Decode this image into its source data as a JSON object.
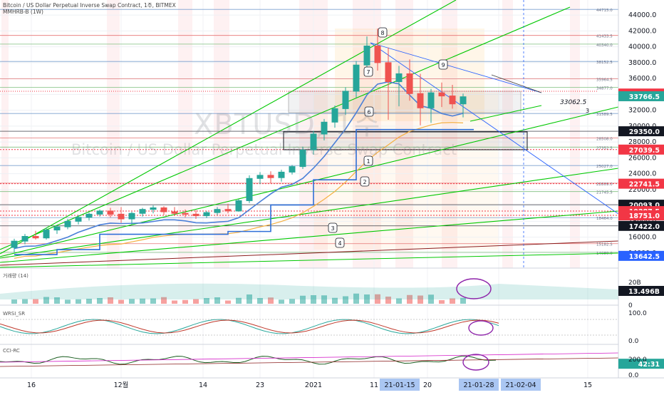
{
  "header": {
    "title": "Bitcoin / US Dollar Perpetual Inverse Swap Contract, 1주, BITMEX",
    "sub": "MMHRB-B (1W)"
  },
  "watermark": {
    "symbol": "XBTUSD, 1주",
    "name": "Bitcoin / US Dollar Perpetual Inverse Swap Contract"
  },
  "colors": {
    "up": "#26a69a",
    "down": "#ef5350",
    "accent_blue": "#2962ff",
    "price_red": "#f23645",
    "trend_green": "#00c800",
    "date_badge": "#aac6f2"
  },
  "chart_data": {
    "type": "candlestick",
    "panels": [
      "price",
      "거래량 (14)",
      "WRSI_SR",
      "CCI-RC"
    ],
    "price_axis": {
      "labels": [
        "44000.0",
        "42000.0",
        "40000.0",
        "38000.0",
        "36000.0",
        "34000.0",
        "32000.0",
        "30000.0",
        "28000.0",
        "26000.0",
        "24000.0",
        "22000.0",
        "20000.0",
        "18000.0",
        "16000.0",
        "14000.0"
      ],
      "ylim": [
        13000,
        45000
      ]
    },
    "price_tags": [
      {
        "text": "34107.5",
        "color": "#f23645"
      },
      {
        "text": "33766.5",
        "color": "#26a69a"
      },
      {
        "text": "42:31",
        "color": "#26a69a"
      },
      {
        "text": "29350.0",
        "color": "#131722"
      },
      {
        "text": "27039.5",
        "color": "#f23645"
      },
      {
        "text": "22741.5",
        "color": "#f23645"
      },
      {
        "text": "20093.0",
        "color": "#131722"
      },
      {
        "text": "19287.5",
        "color": "#f23645"
      },
      {
        "text": "18751.0",
        "color": "#f23645"
      },
      {
        "text": "17422.0",
        "color": "#131722"
      },
      {
        "text": "13642.5",
        "color": "#2962ff"
      }
    ],
    "level_labels": [
      "44715.0",
      "41433.5",
      "40340.0",
      "38152.5",
      "35964.5",
      "34877.0",
      "31589.5",
      "28508.0",
      "27352.5",
      "25027.0",
      "22809.0",
      "21745.5",
      "18464.0",
      "15182.5",
      "14089.0"
    ],
    "chart_annotations": [
      "33062.5",
      "3"
    ],
    "markers": [
      "1",
      "2",
      "3",
      "4",
      "6",
      "7",
      "8",
      "9"
    ],
    "candles": [
      {
        "o": 14700,
        "h": 15800,
        "l": 14100,
        "c": 15500
      },
      {
        "o": 15500,
        "h": 16400,
        "l": 15100,
        "c": 16100
      },
      {
        "o": 16100,
        "h": 16800,
        "l": 15700,
        "c": 15900
      },
      {
        "o": 15900,
        "h": 17200,
        "l": 15700,
        "c": 16900
      },
      {
        "o": 16900,
        "h": 17500,
        "l": 16400,
        "c": 17300
      },
      {
        "o": 17300,
        "h": 18300,
        "l": 17000,
        "c": 18000
      },
      {
        "o": 18000,
        "h": 18800,
        "l": 17600,
        "c": 18500
      },
      {
        "o": 18500,
        "h": 19100,
        "l": 18100,
        "c": 18900
      },
      {
        "o": 18900,
        "h": 19500,
        "l": 18600,
        "c": 19300
      },
      {
        "o": 19300,
        "h": 19700,
        "l": 18500,
        "c": 18900
      },
      {
        "o": 18900,
        "h": 19800,
        "l": 17800,
        "c": 18300
      },
      {
        "o": 18300,
        "h": 19200,
        "l": 17600,
        "c": 19000
      },
      {
        "o": 19000,
        "h": 19700,
        "l": 18600,
        "c": 19500
      },
      {
        "o": 19500,
        "h": 20000,
        "l": 19000,
        "c": 19700
      },
      {
        "o": 19700,
        "h": 19900,
        "l": 18800,
        "c": 19200
      },
      {
        "o": 19200,
        "h": 19800,
        "l": 18700,
        "c": 19000
      },
      {
        "o": 19000,
        "h": 19500,
        "l": 18500,
        "c": 18900
      },
      {
        "o": 18900,
        "h": 19400,
        "l": 18300,
        "c": 18700
      },
      {
        "o": 18700,
        "h": 19300,
        "l": 18400,
        "c": 19100
      },
      {
        "o": 19100,
        "h": 19800,
        "l": 18800,
        "c": 19500
      },
      {
        "o": 19500,
        "h": 20200,
        "l": 19000,
        "c": 19300
      },
      {
        "o": 19300,
        "h": 20800,
        "l": 19200,
        "c": 20600
      },
      {
        "o": 20600,
        "h": 23800,
        "l": 20300,
        "c": 23400
      },
      {
        "o": 23400,
        "h": 24200,
        "l": 22700,
        "c": 23800
      },
      {
        "o": 23800,
        "h": 24300,
        "l": 22800,
        "c": 23500
      },
      {
        "o": 23500,
        "h": 24500,
        "l": 23000,
        "c": 24200
      },
      {
        "o": 24200,
        "h": 25100,
        "l": 23900,
        "c": 24900
      },
      {
        "o": 24900,
        "h": 27400,
        "l": 24600,
        "c": 27000
      },
      {
        "o": 27000,
        "h": 29400,
        "l": 26400,
        "c": 29000
      },
      {
        "o": 29000,
        "h": 30900,
        "l": 28200,
        "c": 30500
      },
      {
        "o": 30500,
        "h": 32600,
        "l": 29800,
        "c": 32200
      },
      {
        "o": 32200,
        "h": 34900,
        "l": 31400,
        "c": 34400
      },
      {
        "o": 34400,
        "h": 38200,
        "l": 33600,
        "c": 37700
      },
      {
        "o": 37700,
        "h": 41300,
        "l": 36300,
        "c": 40100
      },
      {
        "o": 40100,
        "h": 42300,
        "l": 37000,
        "c": 38000
      },
      {
        "o": 38000,
        "h": 39900,
        "l": 30800,
        "c": 35600
      },
      {
        "o": 35600,
        "h": 37600,
        "l": 32500,
        "c": 36600
      },
      {
        "o": 36600,
        "h": 38400,
        "l": 33200,
        "c": 34100
      },
      {
        "o": 34100,
        "h": 36600,
        "l": 30100,
        "c": 32300
      },
      {
        "o": 32300,
        "h": 34700,
        "l": 30400,
        "c": 34200
      },
      {
        "o": 34200,
        "h": 35500,
        "l": 32400,
        "c": 33800
      },
      {
        "o": 33800,
        "h": 35200,
        "l": 32200,
        "c": 32800
      },
      {
        "o": 32800,
        "h": 34100,
        "l": 31100,
        "c": 33700
      }
    ],
    "subpanel_axes": {
      "volume": [
        "20B",
        "0"
      ],
      "volume_tag": "13.496B",
      "wrsi": [
        "100.0",
        "0.0"
      ],
      "cci": [
        "200.0",
        "0.0"
      ]
    },
    "x_axis": {
      "labels": [
        "16",
        "12월",
        "14",
        "23",
        "2021",
        "11",
        "20",
        "15"
      ],
      "highlighted": [
        "21-01-15",
        "21-01-28",
        "21-02-04"
      ]
    }
  }
}
